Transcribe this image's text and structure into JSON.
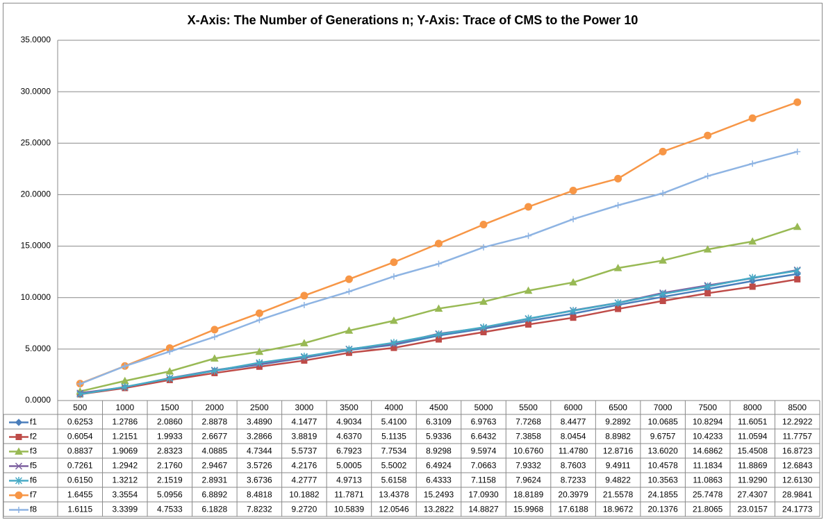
{
  "chart_data": {
    "type": "line",
    "title": "X-Axis: The Number of Generations n; Y-Axis: Trace of CMS to the Power 10",
    "categories": [
      "500",
      "1000",
      "1500",
      "2000",
      "2500",
      "3000",
      "3500",
      "4000",
      "4500",
      "5000",
      "5500",
      "6000",
      "6500",
      "7000",
      "7500",
      "8000",
      "8500"
    ],
    "ylim": [
      0,
      35
    ],
    "yticks": [
      {
        "value": 0,
        "label": "0.0000"
      },
      {
        "value": 5,
        "label": "5.0000"
      },
      {
        "value": 10,
        "label": "10.0000"
      },
      {
        "value": 15,
        "label": "15.0000"
      },
      {
        "value": 20,
        "label": "20.0000"
      },
      {
        "value": 25,
        "label": "25.0000"
      },
      {
        "value": 30,
        "label": "30.0000"
      },
      {
        "value": 35,
        "label": "35.0000"
      }
    ],
    "grid": true,
    "series": [
      {
        "name": "f1",
        "color": "#4a7ebb",
        "marker": "diamond",
        "values": [
          0.6253,
          1.2786,
          2.086,
          2.8878,
          3.489,
          4.1477,
          4.9034,
          5.41,
          6.3109,
          6.9763,
          7.7268,
          8.4477,
          9.2892,
          10.0685,
          10.8294,
          11.6051,
          12.2922
        ],
        "value_labels": [
          "0.6253",
          "1.2786",
          "2.0860",
          "2.8878",
          "3.4890",
          "4.1477",
          "4.9034",
          "5.4100",
          "6.3109",
          "6.9763",
          "7.7268",
          "8.4477",
          "9.2892",
          "10.0685",
          "10.8294",
          "11.6051",
          "12.2922"
        ]
      },
      {
        "name": "f2",
        "color": "#be4b48",
        "marker": "square",
        "values": [
          0.6054,
          1.2151,
          1.9933,
          2.6677,
          3.2866,
          3.8819,
          4.637,
          5.1135,
          5.9336,
          6.6432,
          7.3858,
          8.0454,
          8.8982,
          9.6757,
          10.4233,
          11.0594,
          11.7757
        ],
        "value_labels": [
          "0.6054",
          "1.2151",
          "1.9933",
          "2.6677",
          "3.2866",
          "3.8819",
          "4.6370",
          "5.1135",
          "5.9336",
          "6.6432",
          "7.3858",
          "8.0454",
          "8.8982",
          "9.6757",
          "10.4233",
          "11.0594",
          "11.7757"
        ]
      },
      {
        "name": "f3",
        "color": "#98b954",
        "marker": "triangle",
        "values": [
          0.8837,
          1.9069,
          2.8323,
          4.0885,
          4.7344,
          5.5737,
          6.7923,
          7.7534,
          8.9298,
          9.5974,
          10.676,
          11.478,
          12.8716,
          13.602,
          14.6862,
          15.4508,
          16.8723
        ],
        "value_labels": [
          "0.8837",
          "1.9069",
          "2.8323",
          "4.0885",
          "4.7344",
          "5.5737",
          "6.7923",
          "7.7534",
          "8.9298",
          "9.5974",
          "10.6760",
          "11.4780",
          "12.8716",
          "13.6020",
          "14.6862",
          "15.4508",
          "16.8723"
        ]
      },
      {
        "name": "f5",
        "color": "#7d60a0",
        "marker": "x",
        "values": [
          0.7261,
          1.2942,
          2.176,
          2.9467,
          3.5726,
          4.2176,
          5.0005,
          5.5002,
          6.4924,
          7.0663,
          7.9332,
          8.7603,
          9.4911,
          10.4578,
          11.1834,
          11.8869,
          12.6843
        ],
        "value_labels": [
          "0.7261",
          "1.2942",
          "2.1760",
          "2.9467",
          "3.5726",
          "4.2176",
          "5.0005",
          "5.5002",
          "6.4924",
          "7.0663",
          "7.9332",
          "8.7603",
          "9.4911",
          "10.4578",
          "11.1834",
          "11.8869",
          "12.6843"
        ]
      },
      {
        "name": "f6",
        "color": "#46aac5",
        "marker": "star",
        "values": [
          0.615,
          1.3212,
          2.1519,
          2.8931,
          3.6736,
          4.2777,
          4.9713,
          5.6158,
          6.4333,
          7.1158,
          7.9624,
          8.7233,
          9.4822,
          10.3563,
          11.0863,
          11.929,
          12.613
        ],
        "value_labels": [
          "0.6150",
          "1.3212",
          "2.1519",
          "2.8931",
          "3.6736",
          "4.2777",
          "4.9713",
          "5.6158",
          "6.4333",
          "7.1158",
          "7.9624",
          "8.7233",
          "9.4822",
          "10.3563",
          "11.0863",
          "11.9290",
          "12.6130"
        ]
      },
      {
        "name": "f7",
        "color": "#f79646",
        "marker": "circle",
        "values": [
          1.6455,
          3.3554,
          5.0956,
          6.8892,
          8.4818,
          10.1882,
          11.7871,
          13.4378,
          15.2493,
          17.093,
          18.8189,
          20.3979,
          21.5578,
          24.1855,
          25.7478,
          27.4307,
          28.9841
        ],
        "value_labels": [
          "1.6455",
          "3.3554",
          "5.0956",
          "6.8892",
          "8.4818",
          "10.1882",
          "11.7871",
          "13.4378",
          "15.2493",
          "17.0930",
          "18.8189",
          "20.3979",
          "21.5578",
          "24.1855",
          "25.7478",
          "27.4307",
          "28.9841"
        ]
      },
      {
        "name": "f8",
        "color": "#8eb4e3",
        "marker": "plus",
        "values": [
          1.6115,
          3.3399,
          4.7533,
          6.1828,
          7.8232,
          9.272,
          10.5839,
          12.0546,
          13.2822,
          14.8827,
          15.9968,
          17.6188,
          18.9672,
          20.1376,
          21.8065,
          23.0157,
          24.1773
        ],
        "value_labels": [
          "1.6115",
          "3.3399",
          "4.7533",
          "6.1828",
          "7.8232",
          "9.2720",
          "10.5839",
          "12.0546",
          "13.2822",
          "14.8827",
          "15.9968",
          "17.6188",
          "18.9672",
          "20.1376",
          "21.8065",
          "23.0157",
          "24.1773"
        ]
      }
    ]
  }
}
